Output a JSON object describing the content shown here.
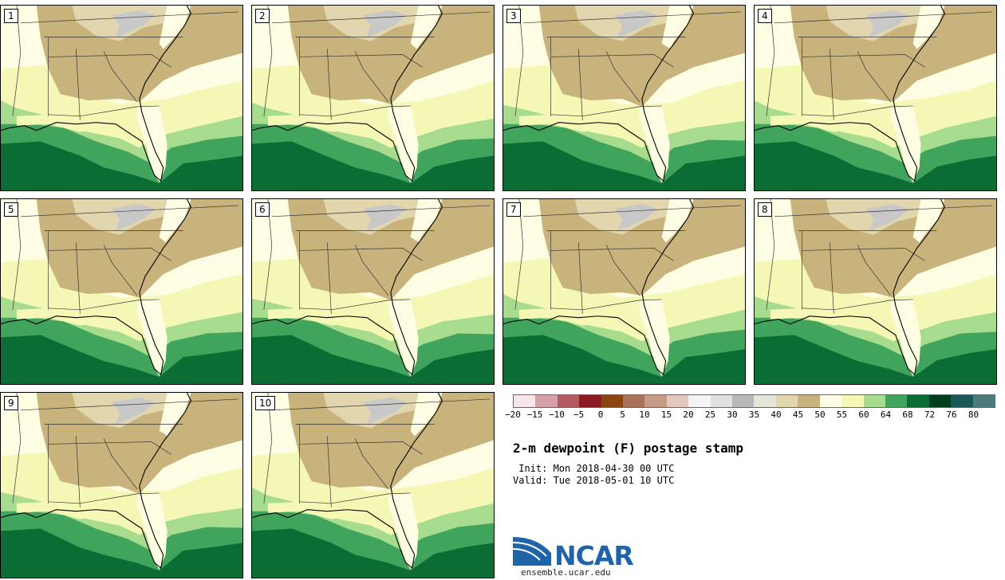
{
  "panels": [
    {
      "label": "1"
    },
    {
      "label": "2"
    },
    {
      "label": "3"
    },
    {
      "label": "4"
    },
    {
      "label": "5"
    },
    {
      "label": "6"
    },
    {
      "label": "7"
    },
    {
      "label": "8"
    },
    {
      "label": "9"
    },
    {
      "label": "10"
    }
  ],
  "colorbar": {
    "ticks": [
      "−20",
      "−15",
      "−10",
      "−5",
      "0",
      "5",
      "10",
      "15",
      "20",
      "25",
      "30",
      "35",
      "40",
      "45",
      "50",
      "55",
      "60",
      "64",
      "68",
      "72",
      "76",
      "80"
    ],
    "colors": [
      "#f7e5ea",
      "#d5a0a8",
      "#b35a62",
      "#8c1a22",
      "#8b4513",
      "#a8735a",
      "#c69c86",
      "#e3c9bd",
      "#f4f4f4",
      "#e0e0e0",
      "#b8b8b8",
      "#e6e6d8",
      "#e2d6ae",
      "#c9b37d",
      "#fdfde3",
      "#f5f8b5",
      "#a7dc8e",
      "#41a45d",
      "#0b6d33",
      "#003d1e",
      "#1a5757",
      "#4b7b7b"
    ]
  },
  "title": "2-m dewpoint (F) postage stamp",
  "init_text": " Init: Mon 2018-04-30 00 UTC",
  "valid_text": "Valid: Tue 2018-05-01 10 UTC",
  "logo_text": "NCAR",
  "site_text": "ensemble.ucar.edu",
  "map_colors": {
    "tan": "#c9b37d",
    "light_tan": "#e2d6ae",
    "gray": "#c8c8c8",
    "cream": "#fdfde3",
    "yellow": "#f5f8b5",
    "light_green": "#a7dc8e",
    "green": "#41a45d",
    "dark_green": "#0b6d33",
    "border": "#333333"
  }
}
